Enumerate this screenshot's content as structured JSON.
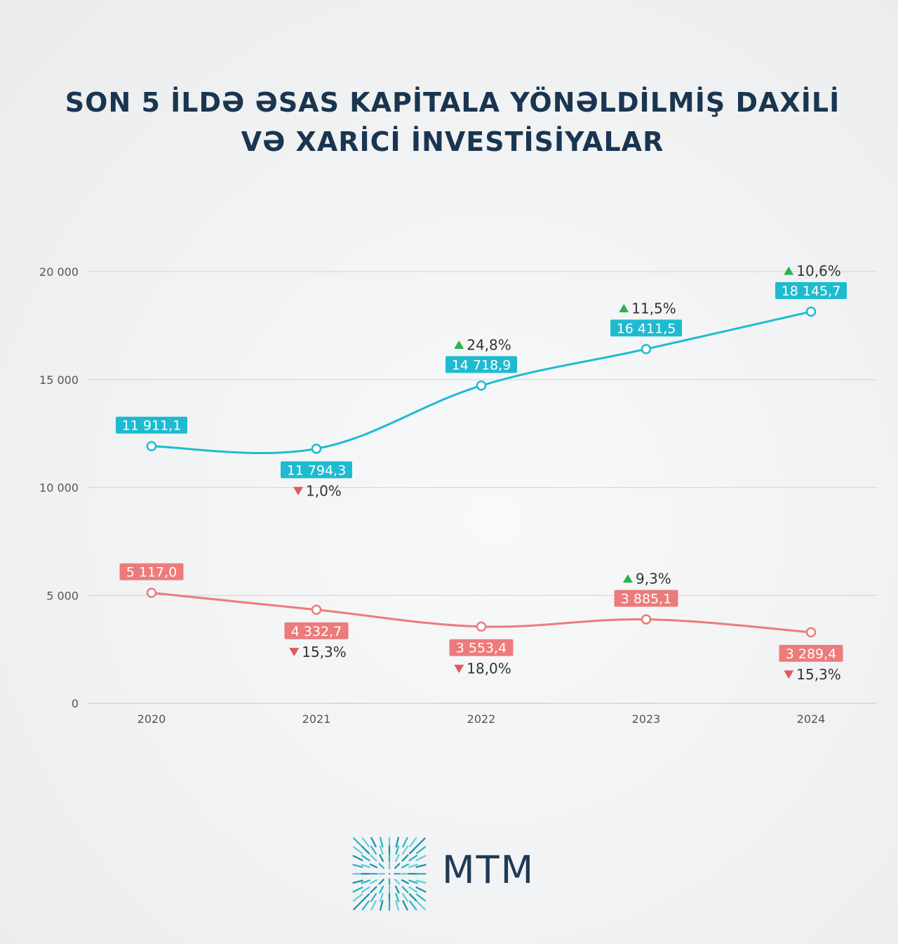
{
  "title": "SON 5 İLDƏ ƏSAS KAPİTALA YÖNƏLDİLMİŞ DAXİLİ VƏ XARİCİ İNVESTİSİYALAR",
  "chart_data": {
    "type": "line",
    "x": [
      "2020",
      "2021",
      "2022",
      "2023",
      "2024"
    ],
    "ylim": [
      0,
      20000
    ],
    "yticks": [
      0,
      5000,
      10000,
      15000,
      20000
    ],
    "ytick_labels": [
      "0",
      "5 000",
      "10 000",
      "15 000",
      "20 000"
    ],
    "grid": true,
    "series": [
      {
        "color": "#1ebbd0",
        "values": [
          11911.1,
          11794.3,
          14718.9,
          16411.5,
          18145.7
        ],
        "value_labels": [
          "11 911,1",
          "11 794,3",
          "14 718,9",
          "16 411,5",
          "18 145,7"
        ],
        "changes": [
          null,
          {
            "dir": "down",
            "text": "1,0%"
          },
          {
            "dir": "up",
            "text": "24,8%"
          },
          {
            "dir": "up",
            "text": "11,5%"
          },
          {
            "dir": "up",
            "text": "10,6%"
          }
        ]
      },
      {
        "color": "#ec7b7b",
        "values": [
          5117.0,
          4332.7,
          3553.4,
          3885.1,
          3289.4
        ],
        "value_labels": [
          "5 117,0",
          "4 332,7",
          "3 553,4",
          "3 885,1",
          "3 289,4"
        ],
        "changes": [
          null,
          {
            "dir": "down",
            "text": "15,3%"
          },
          {
            "dir": "down",
            "text": "18,0%"
          },
          {
            "dir": "up",
            "text": "9,3%"
          },
          {
            "dir": "down",
            "text": "15,3%"
          }
        ]
      }
    ],
    "up_color": "#2bb24c",
    "down_color": "#e05a5a"
  },
  "logo": {
    "text": "MTM",
    "color": "#1d3a56",
    "accent": "#23b5c4"
  }
}
